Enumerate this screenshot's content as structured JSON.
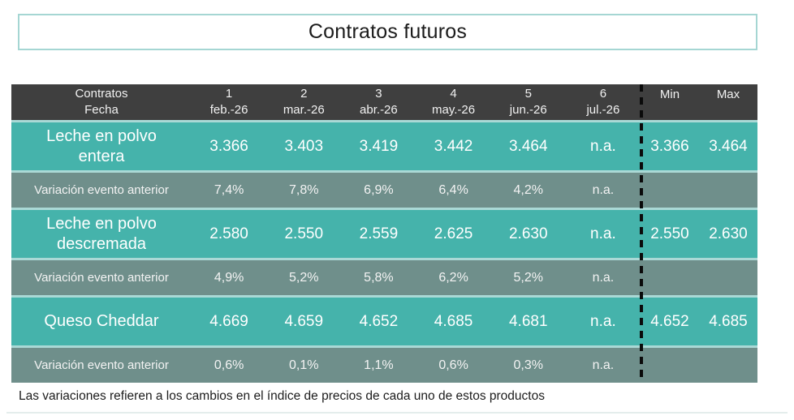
{
  "title": "Contratos futuros",
  "footer_note": "Las variaciones refieren a los cambios en el índice de precios de cada uno de estos productos",
  "colors": {
    "header_bg": "#3f3f3f",
    "product_row_bg": "#45b3ab",
    "variation_row_bg": "#6f8f8b",
    "separator": "#aad9d6",
    "title_border": "#a5d6d3",
    "dashed_divider": "#0a0a0a"
  },
  "table": {
    "corner": {
      "line1": "Contratos",
      "line2": "Fecha"
    },
    "columns": [
      {
        "num": "1",
        "date": "feb.-26"
      },
      {
        "num": "2",
        "date": "mar.-26"
      },
      {
        "num": "3",
        "date": "abr.-26"
      },
      {
        "num": "4",
        "date": "may.-26"
      },
      {
        "num": "5",
        "date": "jun.-26"
      },
      {
        "num": "6",
        "date": "jul.-26"
      }
    ],
    "minmax_headers": {
      "min": "Min",
      "max": "Max"
    },
    "groups": [
      {
        "product": {
          "name": "Leche en polvo entera",
          "values": [
            "3.366",
            "3.403",
            "3.419",
            "3.442",
            "3.464",
            "n.a."
          ],
          "min": "3.366",
          "max": "3.464"
        },
        "variation": {
          "label": "Variación evento anterior",
          "values": [
            "7,4%",
            "7,8%",
            "6,9%",
            "6,4%",
            "4,2%",
            "n.a."
          ]
        }
      },
      {
        "product": {
          "name": "Leche en polvo descremada",
          "values": [
            "2.580",
            "2.550",
            "2.559",
            "2.625",
            "2.630",
            "n.a."
          ],
          "min": "2.550",
          "max": "2.630"
        },
        "variation": {
          "label": "Variación evento anterior",
          "values": [
            "4,9%",
            "5,2%",
            "5,8%",
            "6,2%",
            "5,2%",
            "n.a."
          ]
        }
      },
      {
        "product": {
          "name": "Queso Cheddar",
          "values": [
            "4.669",
            "4.659",
            "4.652",
            "4.685",
            "4.681",
            "n.a."
          ],
          "min": "4.652",
          "max": "4.685"
        },
        "variation": {
          "label": "Variación evento anterior",
          "values": [
            "0,6%",
            "0,1%",
            "1,1%",
            "0,6%",
            "0,3%",
            "n.a."
          ]
        }
      }
    ]
  },
  "chart_data": {
    "type": "table",
    "title": "Contratos futuros",
    "columns": [
      "Contratos / Fecha",
      "1 feb.-26",
      "2 mar.-26",
      "3 abr.-26",
      "4 may.-26",
      "5 jun.-26",
      "6 jul.-26",
      "Min",
      "Max"
    ],
    "rows": [
      [
        "Leche en polvo entera",
        "3.366",
        "3.403",
        "3.419",
        "3.442",
        "3.464",
        "n.a.",
        "3.366",
        "3.464"
      ],
      [
        "Variación evento anterior",
        "7,4%",
        "7,8%",
        "6,9%",
        "6,4%",
        "4,2%",
        "n.a.",
        "",
        ""
      ],
      [
        "Leche en polvo descremada",
        "2.580",
        "2.550",
        "2.559",
        "2.625",
        "2.630",
        "n.a.",
        "2.550",
        "2.630"
      ],
      [
        "Variación evento anterior",
        "4,9%",
        "5,2%",
        "5,8%",
        "6,2%",
        "5,2%",
        "n.a.",
        "",
        ""
      ],
      [
        "Queso Cheddar",
        "4.669",
        "4.659",
        "4.652",
        "4.685",
        "4.681",
        "n.a.",
        "4.652",
        "4.685"
      ],
      [
        "Variación evento anterior",
        "0,6%",
        "0,1%",
        "1,1%",
        "0,6%",
        "0,3%",
        "n.a.",
        "",
        ""
      ]
    ],
    "note": "Las variaciones refieren a los cambios en el índice de precios de cada uno de estos productos"
  }
}
